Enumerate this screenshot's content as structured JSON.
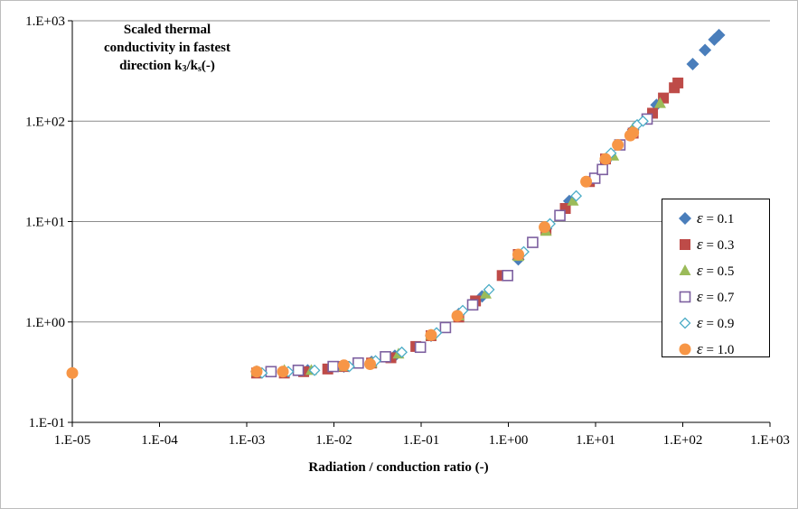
{
  "chart_data": {
    "type": "scatter",
    "title": "Scaled thermal conductivity in fastest direction k3/ks(-)",
    "title_parts": {
      "main": "Scaled thermal conductivity in fastest direction k",
      "sub1": "3",
      "slash": "/k",
      "sub2": "s",
      "tail": "(-)"
    },
    "xlabel": "Radiation / conduction ratio (-)",
    "ylabel": "",
    "xscale": "log",
    "yscale": "log",
    "xlim": [
      1e-05,
      1000
    ],
    "ylim": [
      0.1,
      1000
    ],
    "grid": "y-major",
    "legend_position": "right",
    "x_tick_labels": [
      "1.E-05",
      "1.E-04",
      "1.E-03",
      "1.E-02",
      "1.E-01",
      "1.E+00",
      "1.E+01",
      "1.E+02",
      "1.E+03"
    ],
    "y_tick_labels": [
      "1.E-01",
      "1.E+00",
      "1.E+01",
      "1.E+02",
      "1.E+03"
    ],
    "series": [
      {
        "name": "ε = 0.1",
        "symbol": "ε",
        "value_label": "= 0.1",
        "marker": "diamond",
        "color": "#4a7ebb",
        "points": [
          [
            0.0013,
            0.32
          ],
          [
            0.0027,
            0.32
          ],
          [
            0.005,
            0.33
          ],
          [
            0.013,
            0.36
          ],
          [
            0.027,
            0.4
          ],
          [
            0.05,
            0.46
          ],
          [
            0.13,
            0.73
          ],
          [
            0.27,
            1.2
          ],
          [
            0.5,
            1.8
          ],
          [
            1.3,
            4.2
          ],
          [
            2.7,
            8.5
          ],
          [
            5,
            16
          ],
          [
            13,
            40
          ],
          [
            27,
            82
          ],
          [
            50,
            145
          ],
          [
            130,
            370
          ],
          [
            180,
            510
          ],
          [
            230,
            650
          ],
          [
            260,
            720
          ]
        ]
      },
      {
        "name": "ε = 0.3",
        "symbol": "ε",
        "value_label": "= 0.3",
        "marker": "square",
        "color": "#be4b48",
        "points": [
          [
            0.0013,
            0.31
          ],
          [
            0.0027,
            0.31
          ],
          [
            0.0045,
            0.32
          ],
          [
            0.0085,
            0.34
          ],
          [
            0.013,
            0.36
          ],
          [
            0.027,
            0.39
          ],
          [
            0.045,
            0.44
          ],
          [
            0.087,
            0.57
          ],
          [
            0.13,
            0.73
          ],
          [
            0.27,
            1.12
          ],
          [
            0.42,
            1.62
          ],
          [
            0.85,
            2.9
          ],
          [
            1.3,
            4.7
          ],
          [
            2.7,
            8.3
          ],
          [
            4.5,
            13.5
          ],
          [
            8.5,
            25
          ],
          [
            13,
            42
          ],
          [
            27,
            76
          ],
          [
            45,
            120
          ],
          [
            60,
            170
          ],
          [
            80,
            215
          ],
          [
            88,
            240
          ]
        ]
      },
      {
        "name": "ε = 0.5",
        "symbol": "ε",
        "value_label": "= 0.5",
        "marker": "triangle",
        "color": "#9bbb59",
        "points": [
          [
            0.0013,
            0.32
          ],
          [
            0.0027,
            0.33
          ],
          [
            0.0055,
            0.33
          ],
          [
            0.013,
            0.36
          ],
          [
            0.027,
            0.39
          ],
          [
            0.055,
            0.48
          ],
          [
            0.13,
            0.74
          ],
          [
            0.27,
            1.15
          ],
          [
            0.55,
            1.9
          ],
          [
            1.3,
            4.5
          ],
          [
            2.7,
            8
          ],
          [
            5.5,
            16
          ],
          [
            16,
            45
          ],
          [
            27,
            85
          ],
          [
            55,
            150
          ]
        ]
      },
      {
        "name": "ε = 0.7",
        "symbol": "ε",
        "value_label": "= 0.7",
        "marker": "square-open",
        "color": "#7d60a0",
        "points": [
          [
            0.0019,
            0.32
          ],
          [
            0.0039,
            0.33
          ],
          [
            0.0098,
            0.36
          ],
          [
            0.019,
            0.39
          ],
          [
            0.039,
            0.45
          ],
          [
            0.098,
            0.56
          ],
          [
            0.19,
            0.88
          ],
          [
            0.39,
            1.48
          ],
          [
            0.98,
            2.9
          ],
          [
            1.9,
            6.2
          ],
          [
            3.9,
            11.5
          ],
          [
            9.8,
            27
          ],
          [
            12,
            33
          ],
          [
            19,
            58
          ],
          [
            39,
            105
          ]
        ]
      },
      {
        "name": "ε = 0.9",
        "symbol": "ε",
        "value_label": "= 0.9",
        "marker": "diamond-open",
        "color": "#4bacc6",
        "points": [
          [
            0.0015,
            0.31
          ],
          [
            0.003,
            0.32
          ],
          [
            0.006,
            0.33
          ],
          [
            0.015,
            0.36
          ],
          [
            0.03,
            0.41
          ],
          [
            0.06,
            0.5
          ],
          [
            0.15,
            0.78
          ],
          [
            0.3,
            1.3
          ],
          [
            0.6,
            2.1
          ],
          [
            1.5,
            5
          ],
          [
            3,
            9.5
          ],
          [
            6,
            18
          ],
          [
            15,
            48
          ],
          [
            30,
            92
          ],
          [
            35,
            100
          ]
        ]
      },
      {
        "name": "ε = 1.0",
        "symbol": "ε",
        "value_label": "= 1.0",
        "marker": "circle",
        "color": "#f79646",
        "points": [
          [
            1e-05,
            0.31
          ],
          [
            0.0013,
            0.32
          ],
          [
            0.0026,
            0.32
          ],
          [
            0.013,
            0.37
          ],
          [
            0.026,
            0.38
          ],
          [
            0.13,
            0.74
          ],
          [
            0.26,
            1.15
          ],
          [
            1.3,
            4.7
          ],
          [
            2.6,
            8.8
          ],
          [
            7.8,
            25
          ],
          [
            13,
            42
          ],
          [
            18,
            58
          ],
          [
            25,
            72
          ],
          [
            27,
            77
          ]
        ]
      }
    ]
  }
}
